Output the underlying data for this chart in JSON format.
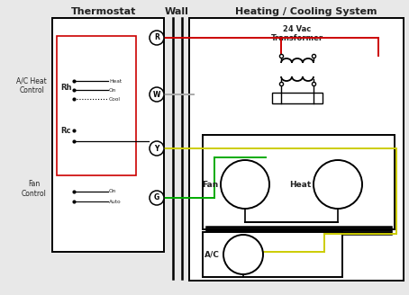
{
  "bg_color": "#e8e8e8",
  "title_thermostat": "Thermostat",
  "title_wall": "Wall",
  "title_hvac": "Heating / Cooling System",
  "title_transformer": "24 Vac\nTransformer",
  "label_ac_heat": "A/C Heat\nControl",
  "label_fan": "Fan\nControl",
  "label_rh": "Rh",
  "label_rc": "Rc",
  "label_heat": "Heat",
  "label_on": "On",
  "label_cool": "Cool",
  "label_on2": "On",
  "label_auto": "Auto",
  "label_fan_box": "Fan",
  "label_heat_box": "Heat",
  "label_ac_box": "A/C",
  "color_red": "#cc0000",
  "color_green": "#00aa00",
  "color_yellow": "#cccc00",
  "color_gray": "#aaaaaa",
  "color_white": "#ffffff",
  "color_black": "#000000",
  "color_dark": "#222222",
  "fig_w": 4.54,
  "fig_h": 3.28,
  "dpi": 100
}
